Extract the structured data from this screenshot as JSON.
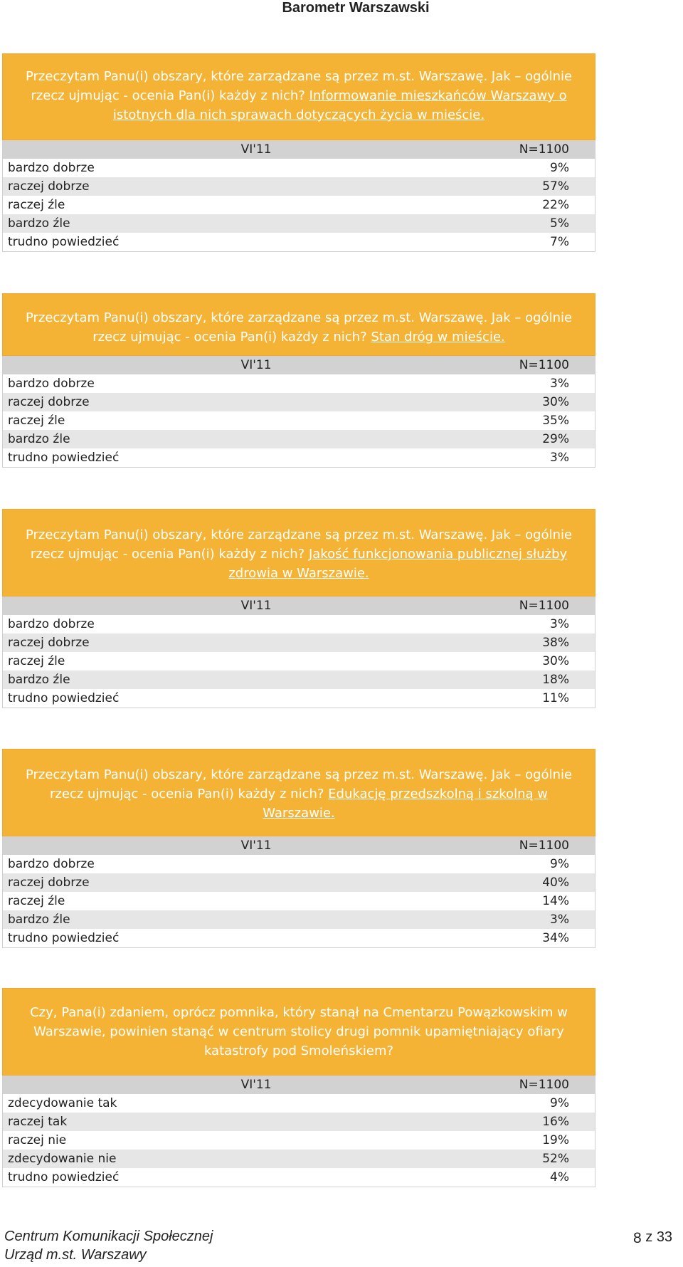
{
  "header": {
    "title": "Barometr Warszawski"
  },
  "blocks": [
    {
      "question_prefix": "Przeczytam Panu(i) obszary, które zarządzane są przez m.st. Warszawę. Jak – ogólnie rzecz ujmując - ocenia Pan(i) każdy z nich? ",
      "question_topic": "Informowanie mieszkańców Warszawy o istotnych dla nich sprawach dotyczących życia w mieście.",
      "period_label": "VI'11",
      "n_label": "N=1100",
      "rows": [
        {
          "label": "bardzo dobrze",
          "value": "9%"
        },
        {
          "label": "raczej dobrze",
          "value": "57%"
        },
        {
          "label": "raczej źle",
          "value": "22%"
        },
        {
          "label": "bardzo źle",
          "value": "5%"
        },
        {
          "label": "trudno powiedzieć",
          "value": "7%"
        }
      ]
    },
    {
      "question_prefix": "Przeczytam Panu(i) obszary, które zarządzane są przez m.st. Warszawę. Jak – ogólnie rzecz ujmując - ocenia Pan(i) każdy z nich? ",
      "question_topic": "Stan dróg w mieście.",
      "period_label": "VI'11",
      "n_label": "N=1100",
      "rows": [
        {
          "label": "bardzo dobrze",
          "value": "3%"
        },
        {
          "label": "raczej dobrze",
          "value": "30%"
        },
        {
          "label": "raczej źle",
          "value": "35%"
        },
        {
          "label": "bardzo źle",
          "value": "29%"
        },
        {
          "label": "trudno powiedzieć",
          "value": "3%"
        }
      ]
    },
    {
      "question_prefix": "Przeczytam Panu(i) obszary, które zarządzane są przez m.st. Warszawę. Jak – ogólnie rzecz ujmując - ocenia Pan(i) każdy z nich? ",
      "question_topic": "Jakość funkcjonowania publicznej służby zdrowia w Warszawie.",
      "period_label": "VI'11",
      "n_label": "N=1100",
      "rows": [
        {
          "label": "bardzo dobrze",
          "value": "3%"
        },
        {
          "label": "raczej dobrze",
          "value": "38%"
        },
        {
          "label": "raczej źle",
          "value": "30%"
        },
        {
          "label": "bardzo źle",
          "value": "18%"
        },
        {
          "label": "trudno powiedzieć",
          "value": "11%"
        }
      ]
    },
    {
      "question_prefix": "Przeczytam Panu(i) obszary, które zarządzane są przez m.st. Warszawę. Jak – ogólnie rzecz ujmując - ocenia Pan(i) każdy z nich? ",
      "question_topic": "Edukację przedszkolną i szkolną w Warszawie.",
      "period_label": "VI'11",
      "n_label": "N=1100",
      "rows": [
        {
          "label": "bardzo dobrze",
          "value": "9%"
        },
        {
          "label": "raczej dobrze",
          "value": "40%"
        },
        {
          "label": "raczej źle",
          "value": "14%"
        },
        {
          "label": "bardzo źle",
          "value": "3%"
        },
        {
          "label": "trudno powiedzieć",
          "value": "34%"
        }
      ]
    },
    {
      "question_prefix": "Czy, Pana(i) zdaniem, oprócz pomnika, który stanął na Cmentarzu Powązkowskim w Warszawie, powinien stanąć w centrum stolicy drugi pomnik upamiętniający ofiary katastrofy pod Smoleńskiem?",
      "question_topic": "",
      "period_label": "VI'11",
      "n_label": "N=1100",
      "rows": [
        {
          "label": "zdecydowanie tak",
          "value": "9%"
        },
        {
          "label": "raczej tak",
          "value": "16%"
        },
        {
          "label": "raczej nie",
          "value": "19%"
        },
        {
          "label": "zdecydowanie nie",
          "value": "52%"
        },
        {
          "label": "trudno powiedzieć",
          "value": "4%"
        }
      ]
    }
  ],
  "footer": {
    "line1": "Centrum Komunikacji Społecznej",
    "line2": "Urząd m.st. Warszawy",
    "page": "8",
    "page_sep": "z",
    "page_total": "33"
  }
}
